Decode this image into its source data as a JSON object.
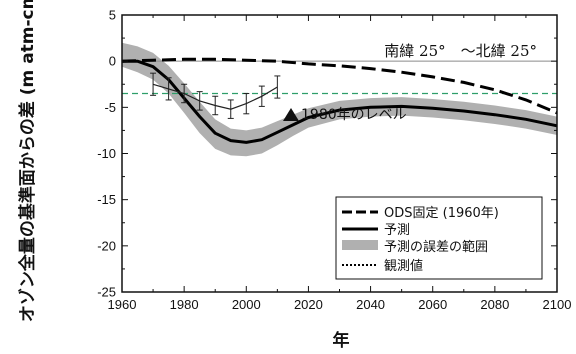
{
  "chart_data": {
    "type": "line",
    "xlabel": "年",
    "ylabel": "オゾン全量の基準面からの差 (m atm-cm)",
    "region_label": "南緯 25°　～北緯 25°",
    "annotation_1980": "1980年のレベル",
    "xlim": [
      1960,
      2100
    ],
    "ylim": [
      -25,
      5
    ],
    "x_ticks": [
      1960,
      1980,
      2000,
      2020,
      2040,
      2060,
      2080,
      2100
    ],
    "y_ticks": [
      5,
      0,
      -5,
      -10,
      -15,
      -20,
      -25
    ],
    "reference_1980_level": -3.5,
    "colors": {
      "ods": "#000000",
      "prediction": "#000000",
      "uncertainty": "#b0b0b0",
      "ref_line": "#2e9e6a",
      "zero_line": "#8a8a8a"
    },
    "legend": {
      "placement": "bottom-right",
      "items": [
        {
          "label": "ODS固定 (1960年)",
          "style": "dashed"
        },
        {
          "label": "予測",
          "style": "solid"
        },
        {
          "label": "予測の誤差の範囲",
          "style": "band"
        },
        {
          "label": "観測値",
          "style": "dotted"
        }
      ]
    },
    "series": [
      {
        "name": "ODS固定 (1960年)",
        "x": [
          1960,
          1970,
          1980,
          1990,
          2000,
          2010,
          2020,
          2030,
          2040,
          2050,
          2060,
          2070,
          2080,
          2090,
          2100
        ],
        "y": [
          0,
          0.1,
          0.2,
          0.2,
          0.1,
          0,
          -0.3,
          -0.5,
          -0.8,
          -1.2,
          -1.7,
          -2.3,
          -3.1,
          -4.2,
          -5.6
        ]
      },
      {
        "name": "予測",
        "x": [
          1960,
          1965,
          1970,
          1975,
          1980,
          1985,
          1990,
          1995,
          2000,
          2005,
          2010,
          2015,
          2020,
          2030,
          2040,
          2050,
          2060,
          2070,
          2080,
          2090,
          2100
        ],
        "y": [
          0,
          0,
          -0.6,
          -2,
          -4,
          -6,
          -7.8,
          -8.6,
          -8.8,
          -8.5,
          -7.7,
          -6.9,
          -6.1,
          -5.3,
          -5,
          -4.9,
          -5.1,
          -5.4,
          -5.8,
          -6.3,
          -7
        ]
      },
      {
        "name": "予測の誤差の範囲",
        "x": [
          1960,
          1965,
          1970,
          1975,
          1980,
          1985,
          1990,
          1995,
          2000,
          2005,
          2010,
          2015,
          2020,
          2030,
          2040,
          2050,
          2060,
          2070,
          2080,
          2090,
          2100
        ],
        "upper": [
          2,
          1.6,
          0.9,
          -0.5,
          -2.4,
          -4.4,
          -6.3,
          -7.3,
          -7.5,
          -7.2,
          -6.5,
          -5.8,
          -5.1,
          -4.3,
          -4,
          -3.9,
          -4.1,
          -4.4,
          -4.8,
          -5.3,
          -6
        ],
        "lower": [
          -0.6,
          -1.2,
          -2,
          -3.5,
          -5.6,
          -7.8,
          -9.5,
          -10.2,
          -10.3,
          -10,
          -9.1,
          -8.1,
          -7.2,
          -6.3,
          -6,
          -5.9,
          -6.1,
          -6.4,
          -6.8,
          -7.3,
          -8
        ]
      },
      {
        "name": "観測値",
        "x": [
          1970,
          1975,
          1980,
          1985,
          1990,
          1995,
          2000,
          2005,
          2010
        ],
        "y": [
          -2.5,
          -3,
          -3.5,
          -4.3,
          -4.8,
          -5.2,
          -4.6,
          -3.8,
          -2.8
        ],
        "err": [
          1.2,
          1.2,
          1,
          1,
          1,
          1,
          1.1,
          1.1,
          1.2
        ]
      }
    ]
  }
}
